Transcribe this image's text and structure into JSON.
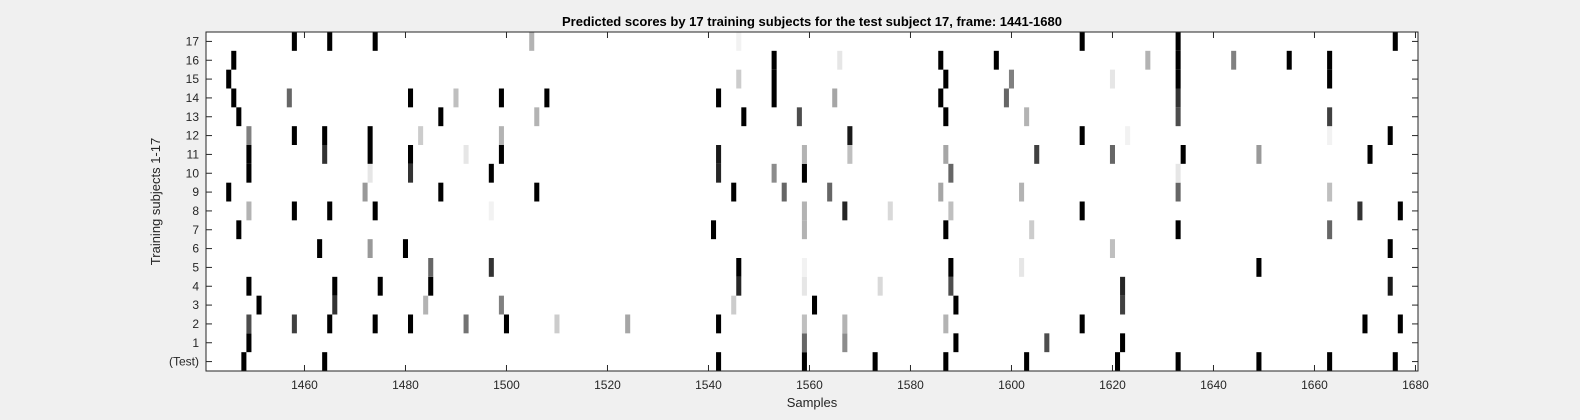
{
  "chart_data": {
    "type": "heatmap",
    "title": "Predicted scores by 17 training subjects for the test subject 17, frame: 1441-1680",
    "xlabel": "Samples",
    "ylabel": "Training subjects 1-17",
    "xlim": [
      1441,
      1680
    ],
    "x_ticks": [
      1460,
      1480,
      1500,
      1520,
      1540,
      1560,
      1580,
      1600,
      1620,
      1640,
      1660,
      1680
    ],
    "x_tick_labels": [
      "1460",
      "1480",
      "1500",
      "1520",
      "1540",
      "1560",
      "1580",
      "1600",
      "1620",
      "1640",
      "1660",
      "1680"
    ],
    "rows": [
      "(Test)",
      "1",
      "2",
      "3",
      "4",
      "5",
      "6",
      "7",
      "8",
      "9",
      "10",
      "11",
      "12",
      "13",
      "14",
      "15",
      "16",
      "17"
    ],
    "value_range": [
      0,
      1
    ],
    "colormap": "white-to-black",
    "background_color": "#ffffff",
    "grid": false,
    "cells": [
      {
        "row": "(Test)",
        "points": [
          [
            1448,
            1
          ],
          [
            1464,
            1
          ],
          [
            1542,
            1
          ],
          [
            1559,
            1
          ],
          [
            1573,
            1
          ],
          [
            1587,
            1
          ],
          [
            1603,
            1
          ],
          [
            1621,
            1
          ],
          [
            1633,
            1
          ],
          [
            1649,
            1
          ],
          [
            1663,
            1
          ],
          [
            1676,
            1
          ]
        ]
      },
      {
        "row": "1",
        "points": [
          [
            1449,
            1
          ],
          [
            1559,
            0.6
          ],
          [
            1567,
            0.45
          ],
          [
            1589,
            1
          ],
          [
            1607,
            0.7
          ],
          [
            1622,
            1
          ]
        ]
      },
      {
        "row": "2",
        "points": [
          [
            1449,
            0.7
          ],
          [
            1458,
            0.75
          ],
          [
            1465,
            1
          ],
          [
            1474,
            1
          ],
          [
            1481,
            1
          ],
          [
            1492,
            0.55
          ],
          [
            1500,
            1
          ],
          [
            1510,
            0.2
          ],
          [
            1524,
            0.35
          ],
          [
            1542,
            1
          ],
          [
            1559,
            0.25
          ],
          [
            1567,
            0.3
          ],
          [
            1587,
            0.3
          ],
          [
            1614,
            1
          ],
          [
            1670,
            1
          ],
          [
            1677,
            1
          ]
        ]
      },
      {
        "row": "3",
        "points": [
          [
            1451,
            1
          ],
          [
            1466,
            0.8
          ],
          [
            1484,
            0.3
          ],
          [
            1499,
            0.5
          ],
          [
            1545,
            0.2
          ],
          [
            1561,
            1
          ],
          [
            1589,
            1
          ],
          [
            1622,
            0.75
          ]
        ]
      },
      {
        "row": "4",
        "points": [
          [
            1449,
            1
          ],
          [
            1466,
            1
          ],
          [
            1475,
            1
          ],
          [
            1485,
            1
          ],
          [
            1546,
            0.85
          ],
          [
            1559,
            0.1
          ],
          [
            1574,
            0.15
          ],
          [
            1588,
            0.7
          ],
          [
            1622,
            0.85
          ],
          [
            1675,
            0.9
          ]
        ]
      },
      {
        "row": "5",
        "points": [
          [
            1485,
            0.6
          ],
          [
            1497,
            0.8
          ],
          [
            1546,
            1
          ],
          [
            1559,
            0.05
          ],
          [
            1588,
            1
          ],
          [
            1602,
            0.1
          ],
          [
            1649,
            1
          ]
        ]
      },
      {
        "row": "6",
        "points": [
          [
            1463,
            1
          ],
          [
            1473,
            0.4
          ],
          [
            1480,
            1
          ],
          [
            1620,
            0.25
          ],
          [
            1675,
            1
          ]
        ]
      },
      {
        "row": "7",
        "points": [
          [
            1447,
            1
          ],
          [
            1541,
            1
          ],
          [
            1559,
            0.3
          ],
          [
            1587,
            1
          ],
          [
            1604,
            0.2
          ],
          [
            1633,
            1
          ],
          [
            1663,
            0.6
          ]
        ]
      },
      {
        "row": "8",
        "points": [
          [
            1449,
            0.3
          ],
          [
            1458,
            1
          ],
          [
            1465,
            1
          ],
          [
            1474,
            1
          ],
          [
            1497,
            0.05
          ],
          [
            1559,
            0.3
          ],
          [
            1567,
            0.85
          ],
          [
            1576,
            0.15
          ],
          [
            1588,
            0.25
          ],
          [
            1614,
            1
          ],
          [
            1669,
            0.8
          ],
          [
            1677,
            1
          ]
        ]
      },
      {
        "row": "9",
        "points": [
          [
            1445,
            1
          ],
          [
            1472,
            0.4
          ],
          [
            1487,
            1
          ],
          [
            1506,
            1
          ],
          [
            1545,
            1
          ],
          [
            1555,
            0.6
          ],
          [
            1564,
            0.6
          ],
          [
            1586,
            0.35
          ],
          [
            1602,
            0.3
          ],
          [
            1633,
            0.6
          ],
          [
            1663,
            0.25
          ]
        ]
      },
      {
        "row": "10",
        "points": [
          [
            1449,
            1
          ],
          [
            1473,
            0.1
          ],
          [
            1481,
            0.8
          ],
          [
            1497,
            1
          ],
          [
            1542,
            0.85
          ],
          [
            1553,
            0.45
          ],
          [
            1559,
            1
          ],
          [
            1588,
            0.6
          ],
          [
            1633,
            0.1
          ]
        ]
      },
      {
        "row": "11",
        "points": [
          [
            1449,
            1
          ],
          [
            1464,
            0.8
          ],
          [
            1473,
            1
          ],
          [
            1481,
            1
          ],
          [
            1492,
            0.1
          ],
          [
            1499,
            1
          ],
          [
            1542,
            0.9
          ],
          [
            1559,
            0.3
          ],
          [
            1568,
            0.25
          ],
          [
            1587,
            0.35
          ],
          [
            1605,
            0.75
          ],
          [
            1620,
            0.6
          ],
          [
            1634,
            1
          ],
          [
            1649,
            0.4
          ],
          [
            1671,
            1
          ]
        ]
      },
      {
        "row": "12",
        "points": [
          [
            1449,
            0.5
          ],
          [
            1458,
            1
          ],
          [
            1464,
            1
          ],
          [
            1473,
            1
          ],
          [
            1483,
            0.2
          ],
          [
            1499,
            0.3
          ],
          [
            1568,
            0.9
          ],
          [
            1614,
            1
          ],
          [
            1623,
            0.05
          ],
          [
            1663,
            0.05
          ],
          [
            1675,
            1
          ]
        ]
      },
      {
        "row": "13",
        "points": [
          [
            1447,
            1
          ],
          [
            1487,
            1
          ],
          [
            1506,
            0.3
          ],
          [
            1547,
            1
          ],
          [
            1558,
            0.7
          ],
          [
            1587,
            1
          ],
          [
            1603,
            0.3
          ],
          [
            1633,
            0.7
          ],
          [
            1663,
            0.75
          ]
        ]
      },
      {
        "row": "14",
        "points": [
          [
            1446,
            1
          ],
          [
            1457,
            0.6
          ],
          [
            1481,
            1
          ],
          [
            1490,
            0.25
          ],
          [
            1499,
            1
          ],
          [
            1508,
            1
          ],
          [
            1542,
            1
          ],
          [
            1553,
            1
          ],
          [
            1565,
            0.35
          ],
          [
            1586,
            1
          ],
          [
            1599,
            0.6
          ],
          [
            1633,
            0.8
          ]
        ]
      },
      {
        "row": "15",
        "points": [
          [
            1445,
            1
          ],
          [
            1546,
            0.2
          ],
          [
            1553,
            1
          ],
          [
            1587,
            1
          ],
          [
            1600,
            0.5
          ],
          [
            1620,
            0.1
          ],
          [
            1633,
            1
          ],
          [
            1663,
            1
          ]
        ]
      },
      {
        "row": "16",
        "points": [
          [
            1446,
            1
          ],
          [
            1553,
            1
          ],
          [
            1566,
            0.1
          ],
          [
            1586,
            1
          ],
          [
            1597,
            1
          ],
          [
            1627,
            0.3
          ],
          [
            1633,
            1
          ],
          [
            1644,
            0.5
          ],
          [
            1655,
            1
          ],
          [
            1663,
            1
          ]
        ]
      },
      {
        "row": "17",
        "points": [
          [
            1458,
            1
          ],
          [
            1465,
            1
          ],
          [
            1474,
            1
          ],
          [
            1505,
            0.3
          ],
          [
            1546,
            0.05
          ],
          [
            1614,
            1
          ],
          [
            1633,
            1
          ],
          [
            1676,
            1
          ]
        ]
      }
    ]
  }
}
